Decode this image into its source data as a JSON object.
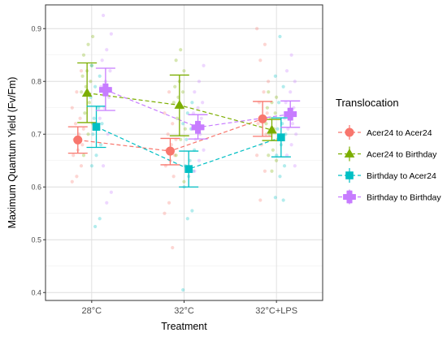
{
  "chart_data": {
    "type": "scatter",
    "xlabel": "Treatment",
    "ylabel": "Maximum Quantum Yield (Fv/Fm)",
    "categories": [
      "28°C",
      "32°C",
      "32°C+LPS"
    ],
    "ylim": [
      0.385,
      0.945
    ],
    "yticks": [
      0.4,
      0.5,
      0.6,
      0.7,
      0.8,
      0.9
    ],
    "ytick_labels": [
      "0.4",
      "0.5",
      "0.6",
      "0.7",
      "0.8",
      "0.9"
    ],
    "grid": true,
    "legend": {
      "title": "Translocation",
      "position": "right"
    },
    "series": [
      {
        "name": "Acer24 to Acer24",
        "color": "#F8766D",
        "marker": "circle",
        "mean": [
          0.689,
          0.668,
          0.729
        ],
        "error_low": [
          0.664,
          0.642,
          0.696
        ],
        "error_high": [
          0.714,
          0.692,
          0.762
        ],
        "raw": [
          [
            0.61,
            0.62,
            0.64,
            0.66,
            0.67,
            0.68,
            0.69,
            0.7,
            0.71,
            0.72,
            0.73,
            0.75,
            0.78,
            0.82
          ],
          [
            0.485,
            0.55,
            0.57,
            0.62,
            0.64,
            0.65,
            0.66,
            0.67,
            0.68,
            0.69,
            0.7,
            0.72,
            0.74,
            0.78
          ],
          [
            0.575,
            0.63,
            0.66,
            0.68,
            0.7,
            0.72,
            0.73,
            0.74,
            0.76,
            0.78,
            0.8,
            0.84,
            0.87,
            0.9
          ]
        ]
      },
      {
        "name": "Acer24 to Birthday",
        "color": "#7CAE00",
        "marker": "triangle",
        "mean": [
          0.778,
          0.755,
          0.708
        ],
        "error_low": [
          0.722,
          0.697,
          0.688
        ],
        "error_high": [
          0.835,
          0.812,
          0.728
        ],
        "raw": [
          [
            0.66,
            0.7,
            0.72,
            0.74,
            0.76,
            0.78,
            0.79,
            0.8,
            0.81,
            0.82,
            0.83,
            0.85,
            0.87,
            0.885
          ],
          [
            0.61,
            0.66,
            0.69,
            0.71,
            0.73,
            0.75,
            0.76,
            0.77,
            0.78,
            0.79,
            0.8,
            0.82,
            0.84,
            0.86
          ],
          [
            0.63,
            0.65,
            0.66,
            0.67,
            0.69,
            0.7,
            0.71,
            0.72,
            0.73,
            0.74,
            0.75,
            0.76,
            0.77,
            0.78
          ]
        ]
      },
      {
        "name": "Birthday to Acer24",
        "color": "#00BFC4",
        "marker": "square",
        "mean": [
          0.714,
          0.634,
          0.694
        ],
        "error_low": [
          0.675,
          0.6,
          0.657
        ],
        "error_high": [
          0.753,
          0.668,
          0.731
        ],
        "raw": [
          [
            0.525,
            0.54,
            0.64,
            0.66,
            0.68,
            0.7,
            0.71,
            0.72,
            0.73,
            0.75,
            0.77,
            0.79,
            0.81,
            0.83
          ],
          [
            0.405,
            0.54,
            0.555,
            0.6,
            0.62,
            0.63,
            0.64,
            0.65,
            0.67,
            0.69,
            0.71,
            0.72,
            0.74,
            0.76
          ],
          [
            0.575,
            0.58,
            0.62,
            0.64,
            0.66,
            0.68,
            0.7,
            0.71,
            0.72,
            0.74,
            0.76,
            0.79,
            0.81,
            0.885
          ]
        ]
      },
      {
        "name": "Birthday to Birthday",
        "color": "#C77CFF",
        "marker": "plus",
        "mean": [
          0.784,
          0.713,
          0.738
        ],
        "error_low": [
          0.745,
          0.691,
          0.713
        ],
        "error_high": [
          0.825,
          0.737,
          0.763
        ],
        "raw": [
          [
            0.57,
            0.59,
            0.64,
            0.7,
            0.73,
            0.75,
            0.77,
            0.79,
            0.8,
            0.82,
            0.84,
            0.86,
            0.89,
            0.925
          ],
          [
            0.63,
            0.65,
            0.67,
            0.69,
            0.7,
            0.71,
            0.72,
            0.73,
            0.74,
            0.75,
            0.76,
            0.78,
            0.8,
            0.83
          ],
          [
            0.64,
            0.66,
            0.68,
            0.7,
            0.71,
            0.72,
            0.73,
            0.74,
            0.75,
            0.76,
            0.78,
            0.8,
            0.82,
            0.85
          ]
        ]
      }
    ]
  }
}
